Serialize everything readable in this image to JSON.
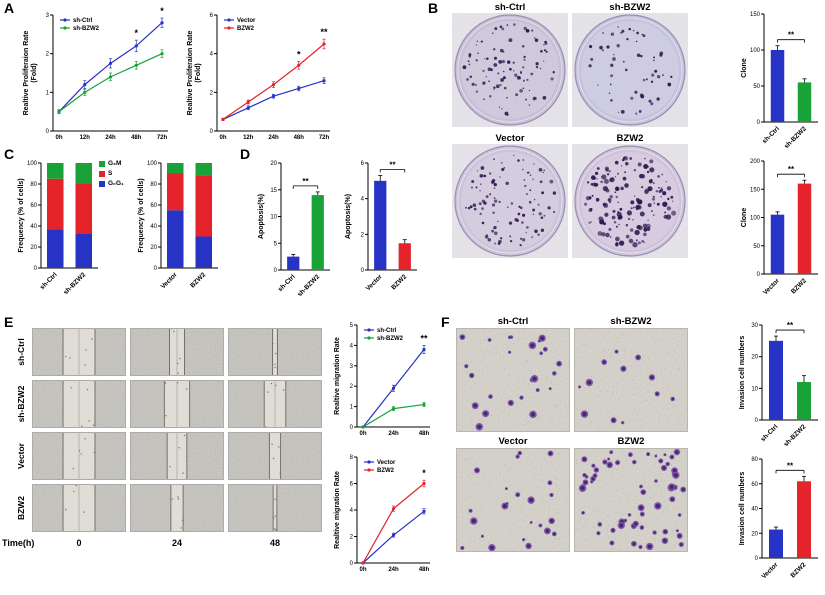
{
  "labels": {
    "a": "A",
    "b": "B",
    "c": "C",
    "d": "D",
    "e": "E",
    "f": "F"
  },
  "colors": {
    "blue": "#2733c5",
    "green": "#18a237",
    "red": "#e4232b"
  },
  "cycle_legend": [
    {
      "label": "G₂M",
      "color": "green"
    },
    {
      "label": "S",
      "color": "red"
    },
    {
      "label": "G₀G₁",
      "color": "blue"
    }
  ],
  "panel_b": {
    "images": [
      {
        "label": "sh-Ctrl",
        "clones": 100,
        "tint": "#c9c0da"
      },
      {
        "label": "sh-BZW2",
        "clones": 55,
        "tint": "#c6c4e0"
      },
      {
        "label": "Vector",
        "clones": 105,
        "tint": "#cdc5dd"
      },
      {
        "label": "BZW2",
        "clones": 160,
        "tint": "#d2c3de"
      }
    ]
  },
  "panel_e": {
    "time_label": "Time(h)",
    "times": [
      "0",
      "24",
      "48"
    ],
    "rows": [
      {
        "label": "sh-Ctrl",
        "gaps": [
          0.34,
          0.16,
          0.05
        ]
      },
      {
        "label": "sh-BZW2",
        "gaps": [
          0.34,
          0.27,
          0.23
        ]
      },
      {
        "label": "Vector",
        "gaps": [
          0.34,
          0.21,
          0.12
        ]
      },
      {
        "label": "BZW2",
        "gaps": [
          0.34,
          0.13,
          0.04
        ]
      }
    ]
  },
  "panel_f": {
    "images": [
      {
        "label": "sh-Ctrl",
        "cells": 25
      },
      {
        "label": "sh-BZW2",
        "cells": 12
      },
      {
        "label": "Vector",
        "cells": 23
      },
      {
        "label": "BZW2",
        "cells": 62
      }
    ]
  },
  "chart_data": [
    {
      "id": "prolif_sh",
      "type": "line",
      "x": [
        "0h",
        "12h",
        "24h",
        "48h",
        "72h"
      ],
      "series": [
        {
          "name": "sh-Ctrl",
          "color": "blue",
          "values": [
            0.5,
            1.2,
            1.75,
            2.2,
            2.8
          ],
          "errs": [
            0.05,
            0.1,
            0.12,
            0.15,
            0.12
          ]
        },
        {
          "name": "sh-BZW2",
          "color": "green",
          "values": [
            0.5,
            1.0,
            1.4,
            1.7,
            2.0
          ],
          "errs": [
            0.05,
            0.08,
            0.1,
            0.1,
            0.1
          ]
        }
      ],
      "ylim": [
        0,
        3
      ],
      "yticks": [
        0,
        1,
        2,
        3
      ],
      "ylabel": "Realtive Proliferaion Rate",
      "ylabel2": "(Fold)",
      "annotations": [
        {
          "xi": 3,
          "text": "*"
        },
        {
          "xi": 4,
          "text": "*"
        }
      ]
    },
    {
      "id": "prolif_vec",
      "type": "line",
      "x": [
        "0h",
        "12h",
        "24h",
        "48h",
        "72h"
      ],
      "series": [
        {
          "name": "Vector",
          "color": "blue",
          "values": [
            0.6,
            1.2,
            1.8,
            2.2,
            2.6
          ],
          "errs": [
            0.05,
            0.1,
            0.1,
            0.12,
            0.15
          ]
        },
        {
          "name": "BZW2",
          "color": "red",
          "values": [
            0.6,
            1.5,
            2.4,
            3.4,
            4.5
          ],
          "errs": [
            0.05,
            0.1,
            0.15,
            0.2,
            0.25
          ]
        }
      ],
      "ylim": [
        0,
        6
      ],
      "yticks": [
        0,
        2,
        4,
        6
      ],
      "ylabel": "Realtive Proliferaion Rate",
      "ylabel2": "(Fold)",
      "annotations": [
        {
          "xi": 3,
          "text": "*"
        },
        {
          "xi": 4,
          "text": "**"
        }
      ]
    },
    {
      "id": "clone_sh",
      "type": "bar",
      "categories": [
        "sh-Ctrl",
        "sh-BZW2"
      ],
      "values": [
        100,
        55
      ],
      "errs": [
        6,
        5
      ],
      "colors": [
        "blue",
        "green"
      ],
      "ylim": [
        0,
        150
      ],
      "yticks": [
        0,
        50,
        100,
        150
      ],
      "ylabel": "Clone",
      "sig": "**"
    },
    {
      "id": "clone_vec",
      "type": "bar",
      "categories": [
        "Vector",
        "BZW2"
      ],
      "values": [
        105,
        160
      ],
      "errs": [
        5,
        6
      ],
      "colors": [
        "blue",
        "red"
      ],
      "ylim": [
        0,
        200
      ],
      "yticks": [
        0,
        50,
        100,
        150,
        200
      ],
      "ylabel": "Clone",
      "sig": "**"
    },
    {
      "id": "cycle_sh",
      "type": "bar",
      "stacked": true,
      "categories": [
        "sh-Ctrl",
        "sh-BZW2"
      ],
      "segments": [
        {
          "name": "G₀G₁",
          "color": "blue",
          "values": [
            37,
            33
          ]
        },
        {
          "name": "S",
          "color": "red",
          "values": [
            48,
            47
          ]
        },
        {
          "name": "G₂M",
          "color": "green",
          "values": [
            15,
            20
          ]
        }
      ],
      "ylim": [
        0,
        100
      ],
      "yticks": [
        0,
        20,
        40,
        60,
        80,
        100
      ],
      "ylabel": "Frequency (% of cells)"
    },
    {
      "id": "cycle_vec",
      "type": "bar",
      "stacked": true,
      "categories": [
        "Vector",
        "BZW2"
      ],
      "segments": [
        {
          "name": "G₀G₁",
          "color": "blue",
          "values": [
            55,
            30
          ]
        },
        {
          "name": "S",
          "color": "red",
          "values": [
            35,
            58
          ]
        },
        {
          "name": "G₂M",
          "color": "green",
          "values": [
            10,
            12
          ]
        }
      ],
      "ylim": [
        0,
        100
      ],
      "yticks": [
        0,
        20,
        40,
        60,
        80,
        100
      ],
      "ylabel": "Frequency (% of cells)"
    },
    {
      "id": "apop_sh",
      "type": "bar",
      "categories": [
        "sh-Ctrl",
        "sh-BZW2"
      ],
      "values": [
        2.5,
        14
      ],
      "errs": [
        0.4,
        0.6
      ],
      "colors": [
        "blue",
        "green"
      ],
      "ylim": [
        0,
        20
      ],
      "yticks": [
        0,
        5,
        10,
        15,
        20
      ],
      "ylabel": "Apoptosis(%)",
      "sig": "**"
    },
    {
      "id": "apop_vec",
      "type": "bar",
      "categories": [
        "Vector",
        "BZW2"
      ],
      "values": [
        5,
        1.5
      ],
      "errs": [
        0.3,
        0.2
      ],
      "colors": [
        "blue",
        "red"
      ],
      "ylim": [
        0,
        6
      ],
      "yticks": [
        0,
        2,
        4,
        6
      ],
      "ylabel": "Apoptosis(%)",
      "sig": "**"
    },
    {
      "id": "migr_sh",
      "type": "line",
      "x": [
        "0h",
        "24h",
        "48h"
      ],
      "series": [
        {
          "name": "sh-Ctrl",
          "color": "blue",
          "values": [
            0,
            1.9,
            3.8
          ],
          "errs": [
            0,
            0.15,
            0.2
          ]
        },
        {
          "name": "sh-BZW2",
          "color": "green",
          "values": [
            0,
            0.9,
            1.1
          ],
          "errs": [
            0,
            0.1,
            0.1
          ]
        }
      ],
      "ylim": [
        0,
        5
      ],
      "yticks": [
        0,
        1,
        2,
        3,
        4,
        5
      ],
      "ylabel": "Realtive migration Rate",
      "annotations": [
        {
          "xi": 2,
          "text": "**"
        }
      ]
    },
    {
      "id": "migr_vec",
      "type": "line",
      "x": [
        "0h",
        "24h",
        "48h"
      ],
      "series": [
        {
          "name": "Vector",
          "color": "blue",
          "values": [
            0,
            2.1,
            3.9
          ],
          "errs": [
            0,
            0.15,
            0.2
          ]
        },
        {
          "name": "BZW2",
          "color": "red",
          "values": [
            0,
            4.1,
            6.0
          ],
          "errs": [
            0,
            0.2,
            0.25
          ]
        }
      ],
      "ylim": [
        0,
        8
      ],
      "yticks": [
        0,
        2,
        4,
        6,
        8
      ],
      "ylabel": "Realtive migration Rate",
      "annotations": [
        {
          "xi": 2,
          "text": "*"
        }
      ]
    },
    {
      "id": "inv_sh",
      "type": "bar",
      "categories": [
        "sh-Ctrl",
        "sh-BZW2"
      ],
      "values": [
        25,
        12
      ],
      "errs": [
        1.5,
        2
      ],
      "colors": [
        "blue",
        "green"
      ],
      "ylim": [
        0,
        30
      ],
      "yticks": [
        0,
        10,
        20,
        30
      ],
      "ylabel": "Invasion cell numbers",
      "sig": "**"
    },
    {
      "id": "inv_vec",
      "type": "bar",
      "categories": [
        "Vector",
        "BZW2"
      ],
      "values": [
        23,
        62
      ],
      "errs": [
        2,
        4
      ],
      "colors": [
        "blue",
        "red"
      ],
      "ylim": [
        0,
        80
      ],
      "yticks": [
        0,
        20,
        40,
        60,
        80
      ],
      "ylabel": "Invasion cell numbers",
      "sig": "**"
    }
  ]
}
